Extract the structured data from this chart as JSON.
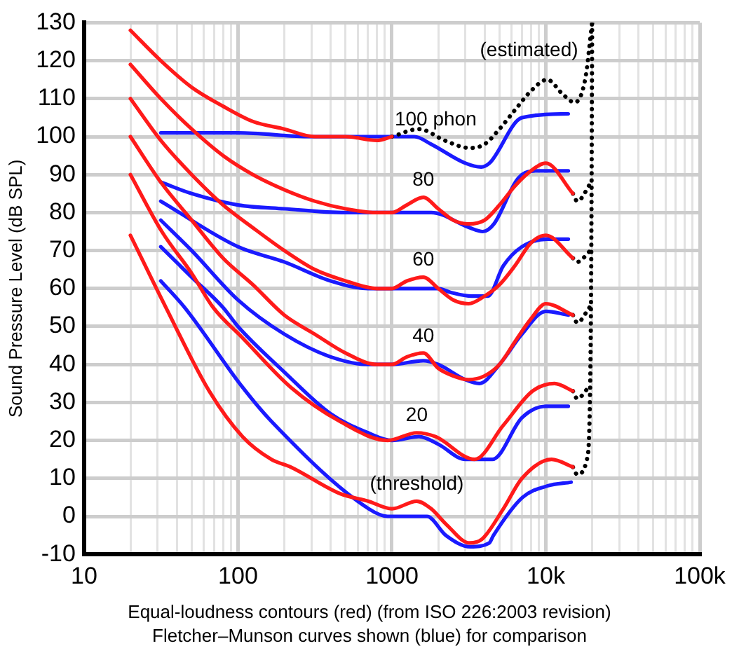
{
  "chart_data": {
    "type": "line",
    "ylabel": "Sound Pressure Level (dB SPL)",
    "log": "x",
    "grid": true,
    "legend": false,
    "marker": "none",
    "xlim": [
      10,
      100000
    ],
    "ylim": [
      -10,
      130
    ],
    "xticks": [
      10,
      {
        "value": 20,
        "label": null
      },
      {
        "value": 30,
        "label": null
      },
      {
        "value": 40,
        "label": null
      },
      {
        "value": 50,
        "label": null
      },
      {
        "value": 60,
        "label": null
      },
      {
        "value": 70,
        "label": null
      },
      {
        "value": 80,
        "label": null
      },
      {
        "value": 90,
        "label": null
      },
      100,
      {
        "value": 200,
        "label": null
      },
      {
        "value": 300,
        "label": null
      },
      {
        "value": 400,
        "label": null
      },
      {
        "value": 500,
        "label": null
      },
      {
        "value": 600,
        "label": null
      },
      {
        "value": 700,
        "label": null
      },
      {
        "value": 800,
        "label": null
      },
      {
        "value": 900,
        "label": null
      },
      1000,
      {
        "value": 2000,
        "label": null
      },
      {
        "value": 3000,
        "label": null
      },
      {
        "value": 4000,
        "label": null
      },
      {
        "value": 5000,
        "label": null
      },
      {
        "value": 6000,
        "label": null
      },
      {
        "value": 7000,
        "label": null
      },
      {
        "value": 8000,
        "label": null
      },
      {
        "value": 9000,
        "label": null
      },
      {
        "value": 10000,
        "label": "10k"
      },
      {
        "value": 20000,
        "label": null
      },
      {
        "value": 30000,
        "label": null
      },
      {
        "value": 40000,
        "label": null
      },
      {
        "value": 50000,
        "label": null
      },
      {
        "value": 60000,
        "label": null
      },
      {
        "value": 70000,
        "label": null
      },
      {
        "value": 80000,
        "label": null
      },
      {
        "value": 90000,
        "label": null
      },
      {
        "value": 100000,
        "label": "100k"
      }
    ],
    "yticks": [
      -10,
      0,
      10,
      20,
      30,
      40,
      50,
      60,
      70,
      80,
      90,
      100,
      110,
      120,
      130
    ],
    "series": [
      {
        "name": "(threshold)",
        "color": "#ff1a1a",
        "x": [
          20,
          34,
          65,
          107,
          165,
          220,
          460,
          700,
          1000,
          1450,
          1800,
          2240,
          3200,
          3850,
          5300,
          7000,
          10900,
          15000
        ],
        "values": [
          74,
          55,
          33,
          21,
          15,
          13,
          6,
          4,
          2,
          4,
          2,
          -2,
          -7,
          -6,
          2,
          10,
          15,
          13
        ]
      },
      {
        "name": "20",
        "color": "#ff1a1a",
        "x": [
          20,
          32,
          50,
          69,
          107,
          220,
          460,
          940,
          1450,
          1920,
          3450,
          5300,
          8200,
          11400,
          15000
        ],
        "values": [
          90,
          75,
          64,
          55,
          47,
          34,
          25,
          20,
          22,
          21,
          15,
          24,
          33,
          35,
          33
        ]
      },
      {
        "name": "40",
        "color": "#ff1a1a",
        "x": [
          20,
          31.5,
          50,
          80,
          125,
          200,
          315,
          500,
          800,
          1000,
          1250,
          1600,
          2000,
          2500,
          3150,
          4000,
          5000,
          6300,
          8000,
          10000,
          15000
        ],
        "values": [
          100,
          88,
          78,
          68,
          61,
          53,
          48,
          43,
          40,
          40,
          42,
          43,
          39,
          37,
          36,
          37,
          40,
          46,
          52,
          56,
          53
        ]
      },
      {
        "name": "60",
        "color": "#ff1a1a",
        "x": [
          20,
          31.5,
          50,
          80,
          125,
          200,
          315,
          500,
          800,
          1000,
          1250,
          1600,
          2000,
          2500,
          3150,
          4000,
          5000,
          6300,
          8000,
          10000,
          15000
        ],
        "values": [
          110,
          99,
          90,
          82,
          76,
          70,
          65,
          62,
          60,
          60,
          62,
          63,
          60,
          57,
          56,
          58,
          61,
          66,
          72,
          74,
          68
        ]
      },
      {
        "name": "80",
        "color": "#ff1a1a",
        "x": [
          20,
          31.5,
          50,
          80,
          125,
          200,
          315,
          500,
          800,
          1000,
          1250,
          1600,
          2000,
          2500,
          3150,
          4000,
          5000,
          6300,
          8000,
          10000,
          15000
        ],
        "values": [
          119,
          110,
          102,
          95,
          90,
          86,
          83,
          81,
          80,
          80,
          82,
          84,
          81,
          78,
          77,
          78,
          82,
          87,
          91,
          93,
          85
        ]
      },
      {
        "name": "100 phon",
        "color": "#ff1a1a",
        "x": [
          20,
          31.5,
          50,
          80,
          125,
          200,
          315,
          500,
          800,
          1000
        ],
        "values": [
          128,
          120,
          113,
          108,
          104,
          102,
          100,
          100,
          99,
          100
        ]
      },
      {
        "name": "(estimated)",
        "color": "#000000",
        "line_style": "dotted",
        "x": [
          1000,
          1500,
          2200,
          3200,
          4000,
          5000,
          6300,
          8000,
          10200,
          13000,
          15400,
          18000,
          20000
        ],
        "values": [
          100,
          102,
          99,
          97,
          98,
          102,
          107,
          112,
          115,
          111,
          109,
          115,
          130
        ]
      },
      {
        "color": "#000000",
        "line_style": "dotted",
        "x": [
          15000,
          16000,
          18500,
          19500,
          19800,
          20000
        ],
        "values": [
          13,
          11,
          15,
          40,
          80,
          130
        ]
      },
      {
        "color": "#000000",
        "line_style": "dotted",
        "x": [
          15000,
          16000,
          19000
        ],
        "values": [
          33,
          31,
          34
        ]
      },
      {
        "color": "#000000",
        "line_style": "dotted",
        "x": [
          15000,
          16000,
          19200
        ],
        "values": [
          53,
          51,
          55
        ]
      },
      {
        "color": "#000000",
        "line_style": "dotted",
        "x": [
          15000,
          16000,
          19500
        ],
        "values": [
          68,
          67,
          70
        ]
      },
      {
        "color": "#000000",
        "line_style": "dotted",
        "x": [
          15000,
          16000,
          19700
        ],
        "values": [
          85,
          83,
          88
        ]
      },
      {
        "color": "#1a1aff",
        "x": [
          31.5,
          45,
          107,
          165,
          706,
          937,
          1690,
          2240,
          3228,
          4290,
          4570,
          7060,
          10200,
          14600
        ],
        "values": [
          62,
          55,
          34,
          25,
          2,
          0,
          0,
          -5,
          -8,
          -7,
          -5,
          5,
          8,
          9
        ]
      },
      {
        "color": "#1a1aff",
        "x": [
          31.5,
          50,
          80,
          100,
          200,
          400,
          700,
          1000,
          1500,
          2000,
          3000,
          4500,
          7000,
          10000,
          14000
        ],
        "values": [
          71,
          63,
          55,
          50,
          38,
          27,
          22,
          20,
          21,
          19,
          15,
          15,
          26,
          29,
          29
        ]
      },
      {
        "color": "#1a1aff",
        "x": [
          31.5,
          50,
          100,
          200,
          400,
          700,
          1000,
          1600,
          2000,
          3000,
          3700,
          5000,
          7000,
          10000,
          14000
        ],
        "values": [
          78,
          70,
          57,
          48,
          42,
          40,
          40,
          41,
          40,
          36,
          35,
          40,
          48,
          54,
          53
        ]
      },
      {
        "color": "#1a1aff",
        "x": [
          31.5,
          100,
          200,
          400,
          700,
          1000,
          2000,
          2400,
          3300,
          4200,
          5300,
          7000,
          10200,
          14000
        ],
        "values": [
          83,
          71,
          67,
          62,
          60,
          60,
          60,
          59,
          58,
          58,
          66,
          71,
          73,
          73
        ]
      },
      {
        "color": "#1a1aff",
        "x": [
          31.5,
          50,
          100,
          200,
          500,
          1000,
          1800,
          3200,
          3900,
          4600,
          6600,
          8800,
          14000
        ],
        "values": [
          88,
          85,
          82,
          81,
          80,
          80,
          80,
          76,
          75,
          77,
          89,
          91,
          91
        ]
      },
      {
        "color": "#1a1aff",
        "x": [
          31.5,
          100,
          300,
          1000,
          1400,
          1800,
          3000,
          3800,
          4300,
          7000,
          14000
        ],
        "values": [
          101,
          101,
          100,
          100,
          100,
          98,
          93,
          92,
          93,
          105,
          106
        ]
      }
    ],
    "annotations": [
      "Equal-loudness contours (red) (from ISO 226:2003 revision)",
      "Fletcher–Munson curves shown (blue) for comparison"
    ]
  }
}
